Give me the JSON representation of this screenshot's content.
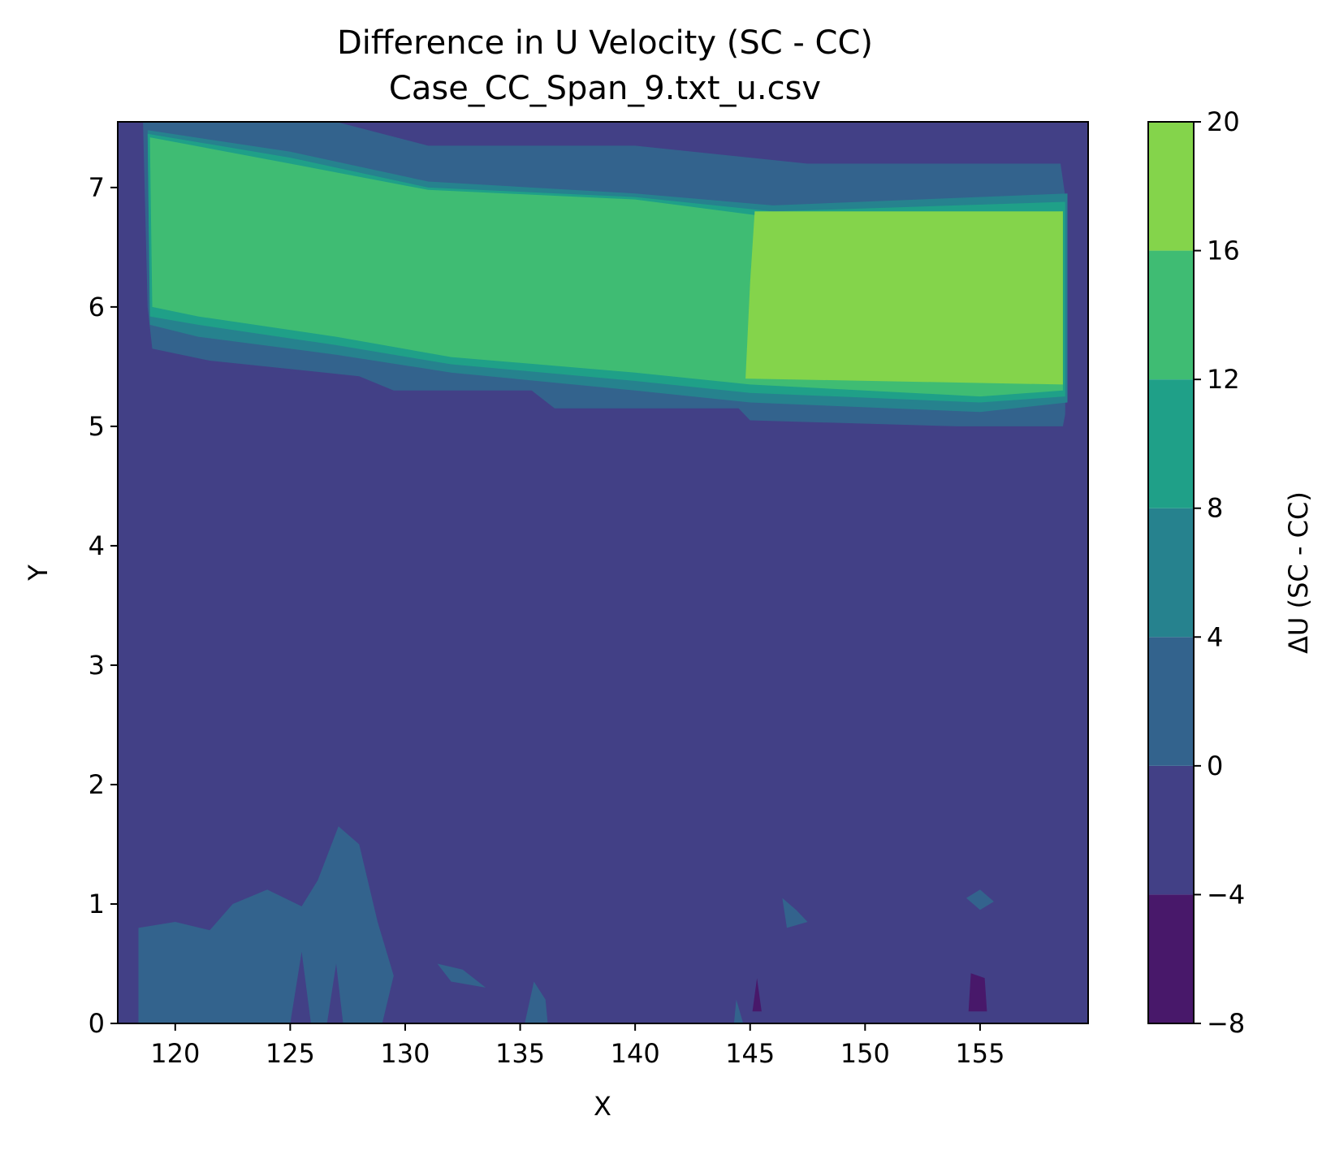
{
  "chart_data": {
    "type": "heatmap",
    "subtype": "filled-contour",
    "title": "Difference in U Velocity (SC - CC)",
    "subtitle": "Case_CC_Span_9.txt_u.csv",
    "xlabel": "X",
    "ylabel": "Y",
    "xlim": [
      117.5,
      159.7
    ],
    "ylim": [
      0,
      7.55
    ],
    "xticks": [
      120,
      125,
      130,
      135,
      140,
      145,
      150,
      155
    ],
    "yticks": [
      0,
      1,
      2,
      3,
      4,
      5,
      6,
      7
    ],
    "colorbar": {
      "label": "ΔU (SC - CC)",
      "levels": [
        -8,
        -4,
        0,
        4,
        8,
        12,
        16,
        20
      ],
      "colors": [
        "#48186a",
        "#424086",
        "#33638d",
        "#26828e",
        "#1fa088",
        "#3fbc73",
        "#84d44b",
        "#d8e219"
      ]
    },
    "regions": [
      {
        "level_range": [
          -4,
          0
        ],
        "description": "background across entire domain"
      },
      {
        "level_range": [
          0,
          4
        ],
        "polygon": [
          [
            118.6,
            7.55
          ],
          [
            127,
            7.55
          ],
          [
            131,
            7.35
          ],
          [
            140,
            7.35
          ],
          [
            147.5,
            7.2
          ],
          [
            158.5,
            7.2
          ],
          [
            158.8,
            6.8
          ],
          [
            158.7,
            5.1
          ],
          [
            158.6,
            5.0
          ],
          [
            154,
            5.0
          ],
          [
            145,
            5.05
          ],
          [
            144.5,
            5.15
          ],
          [
            136.5,
            5.15
          ],
          [
            135.5,
            5.3
          ],
          [
            129.5,
            5.3
          ],
          [
            128,
            5.42
          ],
          [
            121.5,
            5.55
          ],
          [
            119,
            5.65
          ],
          [
            118.8,
            6.0
          ],
          [
            118.6,
            7.55
          ]
        ]
      },
      {
        "level_range": [
          4,
          8
        ],
        "polygon": [
          [
            118.8,
            7.48
          ],
          [
            125,
            7.3
          ],
          [
            131,
            7.05
          ],
          [
            140,
            6.95
          ],
          [
            146,
            6.85
          ],
          [
            158.8,
            6.95
          ],
          [
            158.8,
            5.2
          ],
          [
            155,
            5.12
          ],
          [
            145,
            5.2
          ],
          [
            140,
            5.3
          ],
          [
            132,
            5.45
          ],
          [
            127,
            5.6
          ],
          [
            121,
            5.75
          ],
          [
            118.9,
            5.85
          ],
          [
            118.8,
            7.48
          ]
        ]
      },
      {
        "level_range": [
          8,
          12
        ],
        "polygon": [
          [
            118.8,
            7.45
          ],
          [
            125,
            7.25
          ],
          [
            131,
            7.0
          ],
          [
            140,
            6.92
          ],
          [
            146,
            6.8
          ],
          [
            158.7,
            6.88
          ],
          [
            158.7,
            5.25
          ],
          [
            155,
            5.2
          ],
          [
            145,
            5.28
          ],
          [
            140,
            5.38
          ],
          [
            132,
            5.52
          ],
          [
            127,
            5.68
          ],
          [
            121,
            5.85
          ],
          [
            118.9,
            5.92
          ],
          [
            118.8,
            7.45
          ]
        ]
      },
      {
        "level_range": [
          12,
          16
        ],
        "polygon": [
          [
            118.9,
            7.42
          ],
          [
            125,
            7.2
          ],
          [
            131,
            6.98
          ],
          [
            140,
            6.9
          ],
          [
            146,
            6.75
          ],
          [
            158.6,
            6.8
          ],
          [
            158.6,
            5.3
          ],
          [
            155,
            5.25
          ],
          [
            145,
            5.35
          ],
          [
            140,
            5.45
          ],
          [
            132,
            5.58
          ],
          [
            127,
            5.75
          ],
          [
            121,
            5.92
          ],
          [
            119,
            6.0
          ],
          [
            118.9,
            7.42
          ]
        ]
      },
      {
        "level_range": [
          16,
          20
        ],
        "polygon": [
          [
            145.2,
            6.8
          ],
          [
            158.6,
            6.8
          ],
          [
            158.6,
            5.35
          ],
          [
            144.8,
            5.4
          ],
          [
            145,
            6.2
          ],
          [
            145.2,
            6.8
          ]
        ]
      },
      {
        "level_range": [
          0,
          4
        ],
        "polygon": [
          [
            118.4,
            0
          ],
          [
            118.4,
            0.8
          ],
          [
            120,
            0.85
          ],
          [
            121.5,
            0.78
          ],
          [
            122.5,
            1.0
          ],
          [
            124,
            1.12
          ],
          [
            125.5,
            0.98
          ],
          [
            126.2,
            1.2
          ],
          [
            127.1,
            1.65
          ],
          [
            128,
            1.5
          ],
          [
            128.8,
            0.85
          ],
          [
            129.5,
            0.4
          ],
          [
            129,
            0
          ],
          [
            127.3,
            0
          ],
          [
            127,
            0.5
          ],
          [
            126.6,
            0
          ],
          [
            125.9,
            0
          ],
          [
            125.5,
            0.6
          ],
          [
            125,
            0
          ]
        ]
      },
      {
        "level_range": [
          0,
          4
        ],
        "polygon": [
          [
            131.4,
            0.5
          ],
          [
            132.5,
            0.45
          ],
          [
            133.5,
            0.3
          ],
          [
            132,
            0.35
          ],
          [
            131.4,
            0.5
          ]
        ]
      },
      {
        "level_range": [
          0,
          4
        ],
        "polygon": [
          [
            135.2,
            0
          ],
          [
            135.6,
            0.35
          ],
          [
            136.1,
            0.2
          ],
          [
            136.2,
            0
          ]
        ]
      },
      {
        "level_range": [
          0,
          4
        ],
        "polygon": [
          [
            144.3,
            0
          ],
          [
            144.4,
            0.2
          ],
          [
            144.7,
            0
          ]
        ]
      },
      {
        "level_range": [
          0,
          4
        ],
        "polygon": [
          [
            146.4,
            1.05
          ],
          [
            147,
            0.95
          ],
          [
            147.5,
            0.85
          ],
          [
            146.6,
            0.8
          ],
          [
            146.4,
            1.05
          ]
        ]
      },
      {
        "level_range": [
          0,
          4
        ],
        "polygon": [
          [
            154.4,
            1.05
          ],
          [
            155,
            1.12
          ],
          [
            155.6,
            1.02
          ],
          [
            155,
            0.95
          ],
          [
            154.4,
            1.05
          ]
        ]
      },
      {
        "level_range": [
          -8,
          -4
        ],
        "polygon": [
          [
            145.1,
            0.1
          ],
          [
            145.3,
            0.38
          ],
          [
            145.5,
            0.1
          ]
        ]
      },
      {
        "level_range": [
          -8,
          -4
        ],
        "polygon": [
          [
            154.5,
            0.1
          ],
          [
            154.6,
            0.42
          ],
          [
            155.2,
            0.38
          ],
          [
            155.3,
            0.1
          ]
        ]
      }
    ]
  }
}
